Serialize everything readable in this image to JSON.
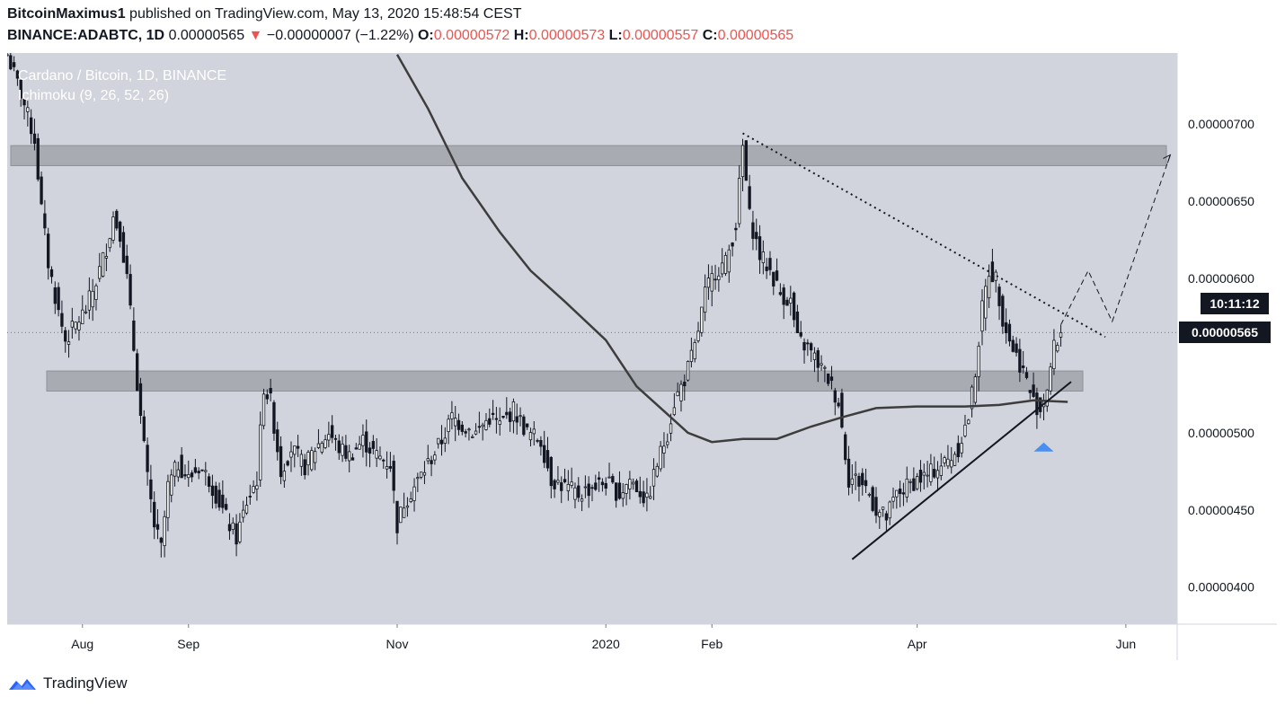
{
  "header": {
    "author": "BitcoinMaximus1",
    "published_text": "published on TradingView.com, May 13, 2020 15:48:54 CEST",
    "symbol": "BINANCE:ADABTC, 1D",
    "last_price": "0.00000565",
    "change_arrow": "▼",
    "change": "−0.00000007 (−1.22%)",
    "open_label": "O:",
    "open": "0.00000572",
    "high_label": "H:",
    "high": "0.00000573",
    "low_label": "L:",
    "low": "0.00000557",
    "close_label": "C:",
    "close": "0.00000565"
  },
  "chart_title": "Cardano / Bitcoin, 1D, BINANCE",
  "indicator_label": "Ichimoku (9, 26, 52, 26)",
  "price_label": "0.00000565",
  "countdown_label": "10:11:12",
  "footer": {
    "brand": "TradingView"
  },
  "colors": {
    "background": "#d1d4dc",
    "candles": "#131722",
    "zone": "#a9abb3",
    "ma_line": "#3d3d3d",
    "arrow": "#4a8ff0"
  },
  "chart_data": {
    "type": "candlestick",
    "title": "Cardano / Bitcoin, 1D, BINANCE",
    "indicator": "Ichimoku (9, 26, 52, 26)",
    "x_ticks": [
      {
        "label": "Aug",
        "date": "2019-08-01"
      },
      {
        "label": "Sep",
        "date": "2019-09-01"
      },
      {
        "label": "Nov",
        "date": "2019-11-01"
      },
      {
        "label": "2020",
        "date": "2020-01-01"
      },
      {
        "label": "Feb",
        "date": "2020-02-01"
      },
      {
        "label": "Apr",
        "date": "2020-04-01"
      },
      {
        "label": "Jun",
        "date": "2020-06-01"
      }
    ],
    "y_ticks": [
      {
        "label": "0.00000700",
        "value": 700
      },
      {
        "label": "0.00000650",
        "value": 650
      },
      {
        "label": "0.00000600",
        "value": 600
      },
      {
        "label": "0.00000500",
        "value": 500
      },
      {
        "label": "0.00000450",
        "value": 450
      },
      {
        "label": "0.00000400",
        "value": 400
      }
    ],
    "y_unit_note": "values are in units of 1e-8 BTC",
    "ylim": [
      376,
      746
    ],
    "x_range": [
      "2019-07-10",
      "2020-06-16"
    ],
    "close_series": [
      [
        "2019-07-10",
        745
      ],
      [
        "2019-07-14",
        720
      ],
      [
        "2019-07-18",
        690
      ],
      [
        "2019-07-20",
        645
      ],
      [
        "2019-07-22",
        610
      ],
      [
        "2019-07-25",
        578
      ],
      [
        "2019-07-27",
        560
      ],
      [
        "2019-07-30",
        570
      ],
      [
        "2019-08-02",
        580
      ],
      [
        "2019-08-05",
        598
      ],
      [
        "2019-08-08",
        620
      ],
      [
        "2019-08-10",
        640
      ],
      [
        "2019-08-12",
        630
      ],
      [
        "2019-08-14",
        600
      ],
      [
        "2019-08-16",
        555
      ],
      [
        "2019-08-18",
        510
      ],
      [
        "2019-08-20",
        470
      ],
      [
        "2019-08-22",
        440
      ],
      [
        "2019-08-24",
        425
      ],
      [
        "2019-08-26",
        465
      ],
      [
        "2019-08-29",
        480
      ],
      [
        "2019-09-01",
        470
      ],
      [
        "2019-09-04",
        478
      ],
      [
        "2019-09-07",
        470
      ],
      [
        "2019-09-10",
        455
      ],
      [
        "2019-09-13",
        440
      ],
      [
        "2019-09-15",
        432
      ],
      [
        "2019-09-18",
        455
      ],
      [
        "2019-09-21",
        470
      ],
      [
        "2019-09-23",
        530
      ],
      [
        "2019-09-25",
        520
      ],
      [
        "2019-09-28",
        475
      ],
      [
        "2019-10-01",
        490
      ],
      [
        "2019-10-05",
        478
      ],
      [
        "2019-10-08",
        490
      ],
      [
        "2019-10-12",
        500
      ],
      [
        "2019-10-15",
        490
      ],
      [
        "2019-10-18",
        485
      ],
      [
        "2019-10-22",
        495
      ],
      [
        "2019-10-26",
        485
      ],
      [
        "2019-10-30",
        480
      ],
      [
        "2019-11-01",
        440
      ],
      [
        "2019-11-03",
        455
      ],
      [
        "2019-11-06",
        465
      ],
      [
        "2019-11-10",
        480
      ],
      [
        "2019-11-14",
        495
      ],
      [
        "2019-11-17",
        510
      ],
      [
        "2019-11-20",
        505
      ],
      [
        "2019-11-24",
        500
      ],
      [
        "2019-11-28",
        510
      ],
      [
        "2019-12-01",
        505
      ],
      [
        "2019-12-05",
        515
      ],
      [
        "2019-12-09",
        500
      ],
      [
        "2019-12-13",
        495
      ],
      [
        "2019-12-16",
        470
      ],
      [
        "2019-12-20",
        465
      ],
      [
        "2019-12-24",
        460
      ],
      [
        "2019-12-28",
        465
      ],
      [
        "2020-01-01",
        468
      ],
      [
        "2020-01-05",
        460
      ],
      [
        "2020-01-08",
        470
      ],
      [
        "2020-01-11",
        462
      ],
      [
        "2020-01-13",
        455
      ],
      [
        "2020-01-16",
        480
      ],
      [
        "2020-01-19",
        500
      ],
      [
        "2020-01-21",
        520
      ],
      [
        "2020-01-24",
        535
      ],
      [
        "2020-01-27",
        555
      ],
      [
        "2020-01-30",
        590
      ],
      [
        "2020-02-02",
        605
      ],
      [
        "2020-02-05",
        610
      ],
      [
        "2020-02-08",
        635
      ],
      [
        "2020-02-10",
        685
      ],
      [
        "2020-02-12",
        640
      ],
      [
        "2020-02-15",
        615
      ],
      [
        "2020-02-18",
        605
      ],
      [
        "2020-02-21",
        590
      ],
      [
        "2020-02-24",
        585
      ],
      [
        "2020-02-26",
        560
      ],
      [
        "2020-02-29",
        555
      ],
      [
        "2020-03-03",
        545
      ],
      [
        "2020-03-06",
        535
      ],
      [
        "2020-03-09",
        520
      ],
      [
        "2020-03-12",
        470
      ],
      [
        "2020-03-14",
        470
      ],
      [
        "2020-03-17",
        465
      ],
      [
        "2020-03-20",
        450
      ],
      [
        "2020-03-23",
        445
      ],
      [
        "2020-03-26",
        460
      ],
      [
        "2020-03-29",
        465
      ],
      [
        "2020-04-01",
        470
      ],
      [
        "2020-04-04",
        472
      ],
      [
        "2020-04-07",
        478
      ],
      [
        "2020-04-10",
        482
      ],
      [
        "2020-04-13",
        490
      ],
      [
        "2020-04-16",
        510
      ],
      [
        "2020-04-18",
        540
      ],
      [
        "2020-04-20",
        580
      ],
      [
        "2020-04-22",
        605
      ],
      [
        "2020-04-24",
        600
      ],
      [
        "2020-04-26",
        575
      ],
      [
        "2020-04-28",
        560
      ],
      [
        "2020-04-30",
        550
      ],
      [
        "2020-05-02",
        540
      ],
      [
        "2020-05-05",
        520
      ],
      [
        "2020-05-07",
        515
      ],
      [
        "2020-05-09",
        530
      ],
      [
        "2020-05-11",
        555
      ],
      [
        "2020-05-13",
        565
      ]
    ],
    "ma_curve": [
      [
        "2019-11-01",
        745
      ],
      [
        "2019-11-10",
        710
      ],
      [
        "2019-11-20",
        665
      ],
      [
        "2019-12-01",
        630
      ],
      [
        "2019-12-10",
        605
      ],
      [
        "2019-12-20",
        585
      ],
      [
        "2020-01-01",
        560
      ],
      [
        "2020-01-10",
        530
      ],
      [
        "2020-01-20",
        510
      ],
      [
        "2020-01-25",
        500
      ],
      [
        "2020-02-01",
        494
      ],
      [
        "2020-02-10",
        496
      ],
      [
        "2020-02-20",
        496
      ],
      [
        "2020-03-01",
        504
      ],
      [
        "2020-03-10",
        510
      ],
      [
        "2020-03-20",
        516
      ],
      [
        "2020-04-01",
        517
      ],
      [
        "2020-04-15",
        517
      ],
      [
        "2020-04-25",
        518
      ],
      [
        "2020-05-05",
        521
      ],
      [
        "2020-05-15",
        520
      ]
    ],
    "resistance_zone": [
      673,
      686
    ],
    "support_zone": [
      527,
      540
    ],
    "descending_trendline": [
      [
        "2020-02-10",
        694
      ],
      [
        "2020-05-26",
        562
      ]
    ],
    "ascending_trendline": [
      [
        "2020-03-13",
        418
      ],
      [
        "2020-05-16",
        533
      ]
    ],
    "projection_path": [
      [
        "2020-05-13",
        570
      ],
      [
        "2020-05-21",
        605
      ],
      [
        "2020-05-28",
        572
      ],
      [
        "2020-06-14",
        680
      ]
    ],
    "last_price": 565
  }
}
